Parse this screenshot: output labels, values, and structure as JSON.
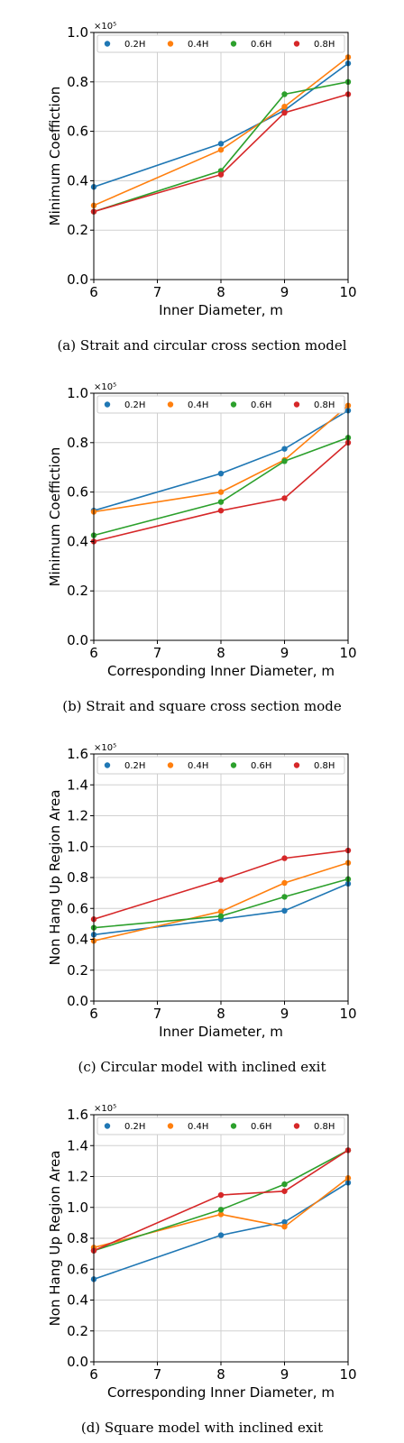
{
  "colors": {
    "0.2H": "#1f77b4",
    "0.4H": "#ff7f0e",
    "0.6H": "#2ca02c",
    "0.8H": "#d62728"
  },
  "chart_data": [
    {
      "type": "line",
      "caption": "(a) Strait and circular cross section model",
      "xlabel": "Inner Diameter, m",
      "ylabel": "Minimum Coeffiction",
      "y_multiplier": "×10⁵",
      "x": [
        6,
        8,
        9,
        10
      ],
      "xticks": [
        "6",
        "7",
        "8",
        "9",
        "10"
      ],
      "yticks": [
        "0.0",
        "0.2",
        "0.4",
        "0.6",
        "0.8",
        "1.0"
      ],
      "xlim": [
        6,
        10
      ],
      "ylim": [
        0,
        1.0
      ],
      "grid": true,
      "legend_position": "top",
      "series": [
        {
          "name": "0.2H",
          "values": [
            0.375,
            0.55,
            0.685,
            0.875
          ]
        },
        {
          "name": "0.4H",
          "values": [
            0.3,
            0.525,
            0.7,
            0.9
          ]
        },
        {
          "name": "0.6H",
          "values": [
            0.275,
            0.44,
            0.75,
            0.8
          ]
        },
        {
          "name": "0.8H",
          "values": [
            0.275,
            0.425,
            0.675,
            0.75
          ]
        }
      ]
    },
    {
      "type": "line",
      "caption": "(b) Strait and square cross section mode",
      "xlabel": "Corresponding Inner Diameter, m",
      "ylabel": "Minimum Coeffiction",
      "y_multiplier": "×10⁵",
      "x": [
        6,
        8,
        9,
        10
      ],
      "xticks": [
        "6",
        "7",
        "8",
        "9",
        "10"
      ],
      "yticks": [
        "0.0",
        "0.2",
        "0.4",
        "0.6",
        "0.8",
        "1.0"
      ],
      "xlim": [
        6,
        10
      ],
      "ylim": [
        0,
        1.0
      ],
      "grid": true,
      "legend_position": "top",
      "series": [
        {
          "name": "0.2H",
          "values": [
            0.525,
            0.675,
            0.775,
            0.93
          ]
        },
        {
          "name": "0.4H",
          "values": [
            0.52,
            0.6,
            0.73,
            0.95
          ]
        },
        {
          "name": "0.6H",
          "values": [
            0.425,
            0.56,
            0.725,
            0.82
          ]
        },
        {
          "name": "0.8H",
          "values": [
            0.4,
            0.525,
            0.575,
            0.8
          ]
        }
      ]
    },
    {
      "type": "line",
      "caption": "(c) Circular model with inclined exit",
      "xlabel": "Inner Diameter, m",
      "ylabel": "Non Hang Up Region Area",
      "y_multiplier": "×10⁵",
      "x": [
        6,
        8,
        9,
        10
      ],
      "xticks": [
        "6",
        "7",
        "8",
        "9",
        "10"
      ],
      "yticks": [
        "0.0",
        "0.2",
        "0.4",
        "0.6",
        "0.8",
        "1.0",
        "1.2",
        "1.4",
        "1.6"
      ],
      "xlim": [
        6,
        10
      ],
      "ylim": [
        0,
        1.6
      ],
      "grid": true,
      "legend_position": "top",
      "series": [
        {
          "name": "0.2H",
          "values": [
            0.43,
            0.53,
            0.585,
            0.76
          ]
        },
        {
          "name": "0.4H",
          "values": [
            0.39,
            0.58,
            0.765,
            0.895
          ]
        },
        {
          "name": "0.6H",
          "values": [
            0.475,
            0.55,
            0.675,
            0.79
          ]
        },
        {
          "name": "0.8H",
          "values": [
            0.53,
            0.785,
            0.925,
            0.975
          ]
        }
      ]
    },
    {
      "type": "line",
      "caption": "(d) Square model with inclined exit",
      "xlabel": "Corresponding Inner Diameter, m",
      "ylabel": "Non Hang Up Region Area",
      "y_multiplier": "×10⁵",
      "x": [
        6,
        8,
        9,
        10
      ],
      "xticks": [
        "6",
        "7",
        "8",
        "9",
        "10"
      ],
      "yticks": [
        "0.0",
        "0.2",
        "0.4",
        "0.6",
        "0.8",
        "1.0",
        "1.2",
        "1.4",
        "1.6"
      ],
      "xlim": [
        6,
        10
      ],
      "ylim": [
        0,
        1.6
      ],
      "grid": true,
      "legend_position": "top",
      "series": [
        {
          "name": "0.2H",
          "values": [
            0.535,
            0.82,
            0.905,
            1.16
          ]
        },
        {
          "name": "0.4H",
          "values": [
            0.74,
            0.955,
            0.875,
            1.19
          ]
        },
        {
          "name": "0.6H",
          "values": [
            0.72,
            0.985,
            1.15,
            1.37
          ]
        },
        {
          "name": "0.8H",
          "values": [
            0.72,
            1.08,
            1.105,
            1.37
          ]
        }
      ]
    }
  ]
}
